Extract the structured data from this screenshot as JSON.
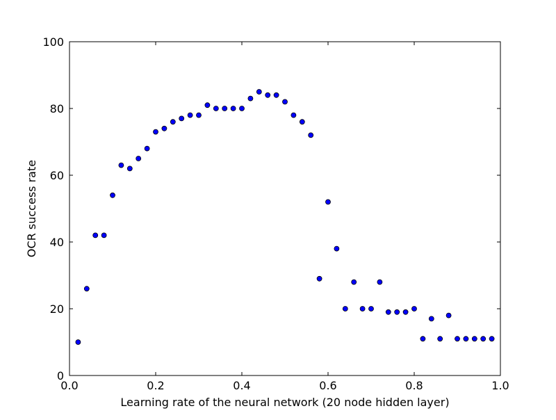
{
  "chart_data": {
    "type": "scatter",
    "title": "",
    "xlabel": "Learning rate of the neural network (20 node hidden layer)",
    "ylabel": "OCR success rate",
    "xlim": [
      0.0,
      1.0
    ],
    "ylim": [
      0,
      100
    ],
    "x_ticks": [
      "0.0",
      "0.2",
      "0.4",
      "0.6",
      "0.8",
      "1.0"
    ],
    "y_ticks": [
      "0",
      "20",
      "40",
      "60",
      "80",
      "100"
    ],
    "grid": false,
    "legend": "none",
    "marker_color": "#0000ff",
    "marker_edge_color": "#000000",
    "x": [
      0.02,
      0.04,
      0.06,
      0.08,
      0.1,
      0.12,
      0.14,
      0.16,
      0.18,
      0.2,
      0.22,
      0.24,
      0.26,
      0.28,
      0.3,
      0.32,
      0.34,
      0.36,
      0.38,
      0.4,
      0.42,
      0.44,
      0.46,
      0.48,
      0.5,
      0.52,
      0.54,
      0.56,
      0.58,
      0.6,
      0.62,
      0.64,
      0.66,
      0.68,
      0.7,
      0.72,
      0.74,
      0.76,
      0.78,
      0.8,
      0.82,
      0.84,
      0.86,
      0.88,
      0.9,
      0.92,
      0.94,
      0.96,
      0.98
    ],
    "y": [
      10,
      26,
      42,
      42,
      54,
      63,
      62,
      65,
      68,
      73,
      74,
      76,
      77,
      78,
      78,
      81,
      80,
      80,
      80,
      80,
      83,
      85,
      84,
      84,
      82,
      78,
      76,
      72,
      29,
      52,
      38,
      20,
      28,
      20,
      20,
      28,
      19,
      19,
      19,
      20,
      11,
      17,
      11,
      18,
      11,
      11,
      11,
      11,
      11
    ]
  }
}
